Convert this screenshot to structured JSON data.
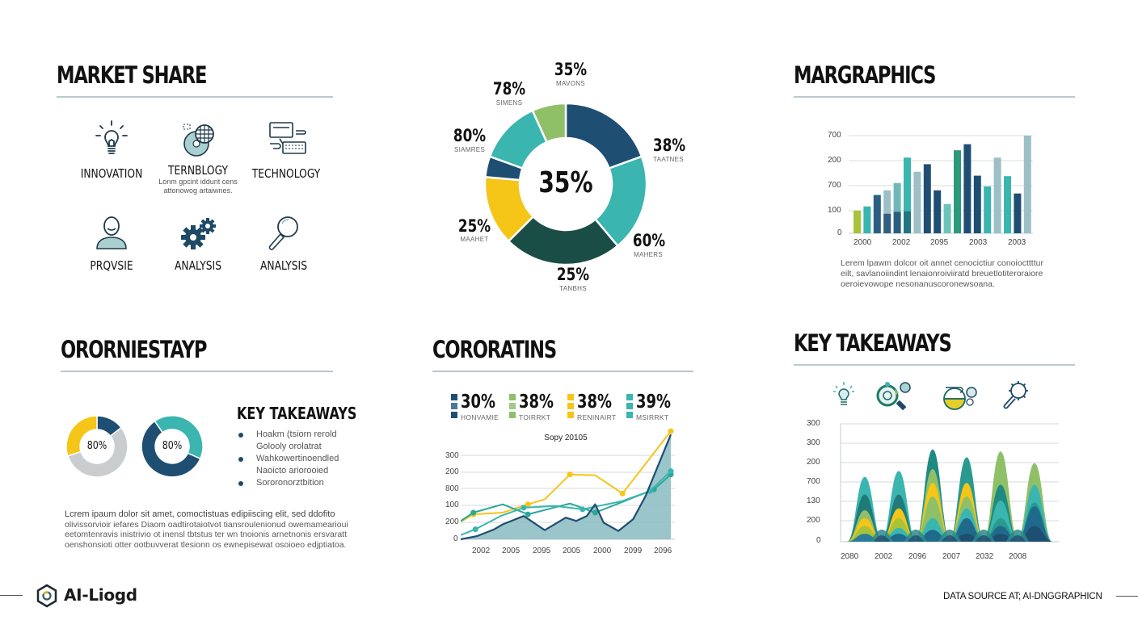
{
  "colors": {
    "navy": "#1f4e73",
    "teal": "#3ab5b0",
    "dark_green": "#1a4d45",
    "yellow": "#f5c518",
    "light_green": "#8fc068",
    "gray": "#c9cdd0",
    "pale_blue": "#9dbfc6",
    "rule": "#b9c9cf"
  },
  "panels": {
    "market_share": {
      "title": "MARKET SHARE",
      "icons": [
        {
          "icon": "lightbulb-icon",
          "label": "INNOVATION",
          "sub": ""
        },
        {
          "icon": "globe-disc-icon",
          "label": "TERNBLOGY",
          "sub_line1": "Lonm gpcint iddunt cens",
          "sub_line2": "attonowog artaiwnes."
        },
        {
          "icon": "computer-keyboard-icon",
          "label": "TECHNOLOGY",
          "sub": ""
        },
        {
          "icon": "person-icon",
          "label": "PRQVSIE",
          "sub": ""
        },
        {
          "icon": "gears-icon",
          "label": "ANALYSIS",
          "sub": ""
        },
        {
          "icon": "magnifier-icon",
          "label": "ANALYSIS",
          "sub": ""
        }
      ]
    },
    "donut": {
      "center_label": "35%",
      "callouts": [
        {
          "value": "35%",
          "label": "MAVONS"
        },
        {
          "value": "38%",
          "label": "TAATNES"
        },
        {
          "value": "60%",
          "label": "MAHERS"
        },
        {
          "value": "25%",
          "label": "TANBHS"
        },
        {
          "value": "25%",
          "label": "MAAHET"
        },
        {
          "value": "80%",
          "label": "SIAMRES"
        },
        {
          "value": "78%",
          "label": "SIMENS"
        }
      ]
    },
    "margraphics": {
      "title": "MARGRAPHICS",
      "lorem_line1": "Lerem lpawm dolcor oit annet cenocictiur conoiocttttur",
      "lorem_line2": "eilt, savlanoiindint lenaionroiviiratd breuetlotiteroraiore",
      "lorem_line3": "oeroievowope nesonanuscoronewsoana."
    },
    "ororniestayp": {
      "title": "ORORNIESTAYP",
      "donut1_label": "80%",
      "donut2_label": "80%",
      "key_takeaways_title": "KEY TAKEAWAYS",
      "bullets": [
        {
          "line1": "Hoakm (tsiorn rerold",
          "line2": "Golooly orolatrat"
        },
        {
          "line1": "Wahkowertinoendled",
          "line2": "Naoicto ariorooied"
        },
        {
          "line1": "Sororonorztbition",
          "line2": ""
        }
      ],
      "lorem_line1": "Lcrem ipaum dolor sit amet, comoctistuas edipiiscing elit, sed ddofito",
      "lorem_line2": "olivissorvioir iefares Diaom oadtirotaiotvot tiansroulenionud owemamearioui",
      "lorem_line3": "eetomtenravis inistrivio ot inensl tbtstus ter wn tnoionis arnetnonis ersvaratt",
      "lorem_line4": "oenshonsioti otter ootbuvverat tlesionn os ewnepisewat osoioeo edjptiatoa."
    },
    "corporatins": {
      "title": "CORORATINS",
      "stats": [
        {
          "value": "30%",
          "label": "HONVAMIE",
          "color": "#1f4e73"
        },
        {
          "value": "38%",
          "label": "TOIRRKT",
          "color": "#8fc068"
        },
        {
          "value": "38%",
          "label": "RENINAIRT",
          "color": "#f5c518"
        },
        {
          "value": "39%",
          "label": "MSIRRKT",
          "color": "#3ab5b0"
        }
      ]
    },
    "key_takeaways": {
      "title": "KEY TAKEAWAYS",
      "icons": [
        "lightbulb-icon",
        "target-magnifier-icon",
        "gauge-gears-icon",
        "gear-magnifier-icon"
      ]
    }
  },
  "footer": {
    "logo_text": "AI-Liogd",
    "source_text": "DATA SOURCE AT; AI-DNGGRAPHICN"
  },
  "chart_data": [
    {
      "type": "pie",
      "title": "",
      "center_label": "35%",
      "slices": [
        {
          "label": "MAVONS",
          "value_label": "35%",
          "color": "#1f4e73",
          "share": 19.5
        },
        {
          "label": "TAATNES",
          "value_label": "38%",
          "color": "#3ab5b0",
          "share": 22
        },
        {
          "label": "MAHERS / TANBHS",
          "value_label": "60% / 25%",
          "color": "#1a4d45",
          "share": 25
        },
        {
          "label": "MAAHET",
          "value_label": "25%",
          "color": "#f5c518",
          "share": 12.5
        },
        {
          "label": "SIAMRES",
          "value_label": "80%",
          "color": "#1f4e73",
          "share": 6
        },
        {
          "label": "SIMENS",
          "value_label": "78%",
          "color": "#3ab5b0",
          "share": 9.5
        },
        {
          "label": "",
          "value_label": "",
          "color": "#8fc068",
          "share": 5.5
        }
      ]
    },
    {
      "type": "bar",
      "title": "MARGRAPHICS",
      "y_tick_labels": [
        "0",
        "100",
        "700",
        "200",
        "700"
      ],
      "x_tick_labels": [
        "2000",
        "2002",
        "2095",
        "2003",
        "2003"
      ],
      "ylim": [
        0,
        4
      ],
      "grid": true,
      "bars": [
        {
          "value": 0.93,
          "color": "#a8c23a"
        },
        {
          "value": 1.1,
          "color": "#3ab5b0"
        },
        {
          "value": 1.57,
          "color": "#2a5f82"
        },
        {
          "value": 1.76,
          "color": "#9dbfc6",
          "inner": 0.8,
          "inner_color": "#1f4e73"
        },
        {
          "value": 2.06,
          "color": "#6fb8b8",
          "inner": 0.88,
          "inner_color": "#1f4e73"
        },
        {
          "value": 3.1,
          "color": "#3ab5b0",
          "inner": 0.9,
          "inner_color": "#1f6a7a"
        },
        {
          "value": 2.52,
          "color": "#9dbfc6"
        },
        {
          "value": 2.83,
          "color": "#1f4e73"
        },
        {
          "value": 1.76,
          "color": "#1f4e73"
        },
        {
          "value": 1.2,
          "color": "#6cc4b8"
        },
        {
          "value": 3.4,
          "color": "#2a9a78"
        },
        {
          "value": 3.65,
          "color": "#1f4e73"
        },
        {
          "value": 2.36,
          "color": "#1f4e73"
        },
        {
          "value": 1.92,
          "color": "#3ab5b0"
        },
        {
          "value": 3.1,
          "color": "#9dbfc6"
        },
        {
          "value": 2.34,
          "color": "#3ab5b0"
        },
        {
          "value": 1.63,
          "color": "#1f4e73"
        },
        {
          "value": 4.0,
          "color": "#9dbfc6"
        }
      ]
    },
    {
      "type": "pie",
      "title": "donut-1",
      "center_label": "80%",
      "slices": [
        {
          "color": "#1f4e73",
          "share": 14
        },
        {
          "color": "#c9cdd0",
          "share": 56
        },
        {
          "color": "#f5c518",
          "share": 30
        }
      ]
    },
    {
      "type": "pie",
      "title": "donut-2",
      "center_label": "80%",
      "slices": [
        {
          "color": "#3ab5b0",
          "share": 42
        },
        {
          "color": "#1f4e73",
          "share": 58
        }
      ]
    },
    {
      "type": "line",
      "title": "Sopy 20105",
      "y_tick_labels": [
        "0",
        "200",
        "100",
        "800",
        "200",
        "300"
      ],
      "x_tick_labels": [
        "2002",
        "2005",
        "2095",
        "2005",
        "2000",
        "2099",
        "2096"
      ],
      "ylim": [
        0,
        5
      ],
      "grid": true,
      "series": [
        {
          "name": "yellow",
          "color": "#f5c518",
          "points": [
            [
              0,
              1.05
            ],
            [
              0.06,
              1.5
            ],
            [
              0.2,
              1.6
            ],
            [
              0.32,
              2.1
            ],
            [
              0.4,
              2.4
            ],
            [
              0.52,
              3.9
            ],
            [
              0.64,
              3.85
            ],
            [
              0.77,
              2.75
            ],
            [
              1.0,
              6.5
            ]
          ]
        },
        {
          "name": "teal-upper",
          "color": "#2aa89a",
          "points": [
            [
              0,
              1.1
            ],
            [
              0.06,
              1.6
            ],
            [
              0.2,
              2.1
            ],
            [
              0.32,
              1.5
            ],
            [
              0.52,
              2.15
            ],
            [
              0.64,
              1.6
            ],
            [
              0.77,
              2.25
            ],
            [
              0.92,
              3.0
            ],
            [
              1.0,
              3.9
            ]
          ]
        },
        {
          "name": "teal-lower",
          "color": "#3ab5b0",
          "points": [
            [
              0,
              0.25
            ],
            [
              0.07,
              0.6
            ],
            [
              0.19,
              1.4
            ],
            [
              0.3,
              1.9
            ],
            [
              0.45,
              2.0
            ],
            [
              0.58,
              1.8
            ],
            [
              0.77,
              2.3
            ],
            [
              0.9,
              2.9
            ],
            [
              1.0,
              4.1
            ]
          ]
        },
        {
          "name": "navy-area",
          "color": "#1f4e73",
          "fill": "#8fbfc4",
          "points": [
            [
              0,
              0
            ],
            [
              0.08,
              0.2
            ],
            [
              0.16,
              0.6
            ],
            [
              0.2,
              0.9
            ],
            [
              0.3,
              1.4
            ],
            [
              0.4,
              0.55
            ],
            [
              0.5,
              1.3
            ],
            [
              0.55,
              1.1
            ],
            [
              0.6,
              1.4
            ],
            [
              0.64,
              2.1
            ],
            [
              0.68,
              1.0
            ],
            [
              0.75,
              0.5
            ],
            [
              0.82,
              1.2
            ],
            [
              0.88,
              2.6
            ],
            [
              1.0,
              6.3
            ]
          ]
        }
      ]
    },
    {
      "type": "area",
      "title": "KEY TAKEAWAYS stream",
      "y_tick_labels": [
        "0",
        "200",
        "130",
        "700",
        "200",
        "300",
        "300"
      ],
      "x_tick_labels": [
        "2080",
        "2002",
        "2096",
        "2007",
        "2032",
        "2008"
      ],
      "ylim": [
        0,
        6
      ],
      "grid": true,
      "peaks": [
        {
          "x": 0,
          "layers": [
            {
              "h": 3.3,
              "color": "#3ab5b0"
            },
            {
              "h": 2.4,
              "color": "#1f7a7a"
            },
            {
              "h": 1.6,
              "color": "#8fc068"
            },
            {
              "h": 1.2,
              "color": "#f5c518"
            },
            {
              "h": 0.8,
              "color": "#a8c23a"
            },
            {
              "h": 0.4,
              "color": "#2a7a9a"
            }
          ]
        },
        {
          "x": 1,
          "layers": [
            {
              "h": 3.6,
              "color": "#3ab5b0"
            },
            {
              "h": 2.4,
              "color": "#1f7a7a"
            },
            {
              "h": 1.7,
              "color": "#f5c518"
            },
            {
              "h": 1.2,
              "color": "#a8c23a"
            },
            {
              "h": 0.7,
              "color": "#3ab5b0"
            },
            {
              "h": 0.4,
              "color": "#1f6a8a"
            }
          ]
        },
        {
          "x": 2,
          "layers": [
            {
              "h": 4.7,
              "color": "#1f8a82"
            },
            {
              "h": 3.7,
              "color": "#8fc068"
            },
            {
              "h": 3.0,
              "color": "#f5c518"
            },
            {
              "h": 2.3,
              "color": "#8fc068"
            },
            {
              "h": 1.2,
              "color": "#3ab5b0"
            },
            {
              "h": 0.6,
              "color": "#1f6a8a"
            }
          ]
        },
        {
          "x": 3,
          "layers": [
            {
              "h": 4.3,
              "color": "#2a9a90"
            },
            {
              "h": 3.0,
              "color": "#f5c518"
            },
            {
              "h": 2.3,
              "color": "#8fc068"
            },
            {
              "h": 1.7,
              "color": "#3ab5b0"
            },
            {
              "h": 1.2,
              "color": "#1f6a8a"
            },
            {
              "h": 0.4,
              "color": "#1f4e73"
            }
          ]
        },
        {
          "x": 4,
          "layers": [
            {
              "h": 4.6,
              "color": "#8fc068"
            },
            {
              "h": 2.9,
              "color": "#1f8a82"
            },
            {
              "h": 2.1,
              "color": "#3ab5b0"
            },
            {
              "h": 1.2,
              "color": "#2a9a90"
            },
            {
              "h": 0.8,
              "color": "#1f6a8a"
            },
            {
              "h": 0.4,
              "color": "#1f4e73"
            }
          ]
        },
        {
          "x": 5,
          "layers": [
            {
              "h": 4.0,
              "color": "#8fc068"
            },
            {
              "h": 2.9,
              "color": "#3ab5b0"
            },
            {
              "h": 2.0,
              "color": "#2a9a90"
            },
            {
              "h": 1.8,
              "color": "#1f6a8a"
            },
            {
              "h": 0.8,
              "color": "#1f4e73"
            }
          ]
        }
      ]
    }
  ]
}
